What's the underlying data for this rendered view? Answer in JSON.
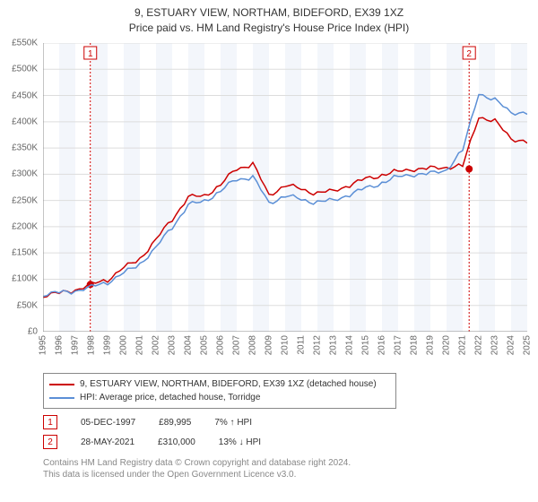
{
  "title_line1": "9, ESTUARY VIEW, NORTHAM, BIDEFORD, EX39 1XZ",
  "title_line2": "Price paid vs. HM Land Registry's House Price Index (HPI)",
  "chart": {
    "type": "line",
    "background_color": "#ffffff",
    "plot_bg_bands_color": "#f3f6fb",
    "grid_color": "#dddddd",
    "axis_color": "#888888",
    "x_years": [
      1995,
      1996,
      1997,
      1998,
      1999,
      2000,
      2001,
      2002,
      2003,
      2004,
      2005,
      2006,
      2007,
      2008,
      2009,
      2010,
      2011,
      2012,
      2013,
      2014,
      2015,
      2016,
      2017,
      2018,
      2019,
      2020,
      2021,
      2022,
      2023,
      2024,
      2025
    ],
    "y_min": 0,
    "y_max": 550000,
    "y_tick_step": 50000,
    "y_tick_labels": [
      "£0",
      "£50K",
      "£100K",
      "£150K",
      "£200K",
      "£250K",
      "£300K",
      "£350K",
      "£400K",
      "£450K",
      "£500K",
      "£550K"
    ],
    "label_fontsize": 10,
    "label_color": "#666666",
    "series": [
      {
        "name": "9, ESTUARY VIEW, NORTHAM, BIDEFORD, EX39 1XZ (detached house)",
        "color": "#cc0000",
        "line_width": 1.5,
        "values_by_year": {
          "1995": 70000,
          "1996": 72000,
          "1997": 80000,
          "1998": 90000,
          "1999": 100000,
          "2000": 120000,
          "2001": 140000,
          "2002": 175000,
          "2003": 215000,
          "2004": 255000,
          "2005": 260000,
          "2006": 280000,
          "2007": 310000,
          "2008": 320000,
          "2009": 260000,
          "2010": 280000,
          "2011": 270000,
          "2012": 265000,
          "2013": 268000,
          "2014": 280000,
          "2015": 290000,
          "2016": 300000,
          "2017": 305000,
          "2018": 310000,
          "2019": 310000,
          "2020": 315000,
          "2021": 315000,
          "2022": 410000,
          "2023": 400000,
          "2024": 370000,
          "2025": 360000
        }
      },
      {
        "name": "HPI: Average price, detached house, Torridge",
        "color": "#5b8fd6",
        "line_width": 1.5,
        "values_by_year": {
          "1995": 72000,
          "1996": 73000,
          "1997": 78000,
          "1998": 85000,
          "1999": 95000,
          "2000": 110000,
          "2001": 130000,
          "2002": 160000,
          "2003": 200000,
          "2004": 240000,
          "2005": 250000,
          "2006": 268000,
          "2007": 290000,
          "2008": 295000,
          "2009": 245000,
          "2010": 260000,
          "2011": 250000,
          "2012": 248000,
          "2013": 250000,
          "2014": 262000,
          "2015": 272000,
          "2016": 285000,
          "2017": 295000,
          "2018": 300000,
          "2019": 300000,
          "2020": 310000,
          "2021": 345000,
          "2022": 455000,
          "2023": 440000,
          "2024": 420000,
          "2025": 415000
        }
      }
    ],
    "event_markers": [
      {
        "label": "1",
        "year": 1997.93,
        "price": 89995,
        "dash_color": "#cc0000"
      },
      {
        "label": "2",
        "year": 2021.4,
        "price": 310000,
        "dash_color": "#cc0000"
      }
    ],
    "point_marker_color": "#cc0000",
    "point_marker_radius": 4
  },
  "legend": {
    "border_color": "#888888",
    "items": [
      {
        "color": "#cc0000",
        "label": "9, ESTUARY VIEW, NORTHAM, BIDEFORD, EX39 1XZ (detached house)"
      },
      {
        "color": "#5b8fd6",
        "label": "HPI: Average price, detached house, Torridge"
      }
    ]
  },
  "marker_rows": [
    {
      "badge": "1",
      "date": "05-DEC-1997",
      "price": "£89,995",
      "pct": "7%",
      "arrow": "↑",
      "suffix": "HPI"
    },
    {
      "badge": "2",
      "date": "28-MAY-2021",
      "price": "£310,000",
      "pct": "13%",
      "arrow": "↓",
      "suffix": "HPI"
    }
  ],
  "license_line1": "Contains HM Land Registry data © Crown copyright and database right 2024.",
  "license_line2": "This data is licensed under the Open Government Licence v3.0."
}
